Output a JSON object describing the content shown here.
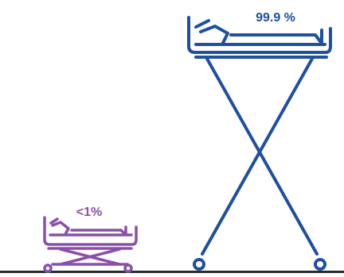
{
  "small_bed": {
    "label": "<1%",
    "color": "#8a4fa8"
  },
  "tall_bed": {
    "label": "99.9 %",
    "color": "#1f4fa0"
  },
  "ground_color": "#2a2a2a",
  "icons": [
    "low-hospital-bed-icon",
    "tall-hospital-bed-icon"
  ]
}
